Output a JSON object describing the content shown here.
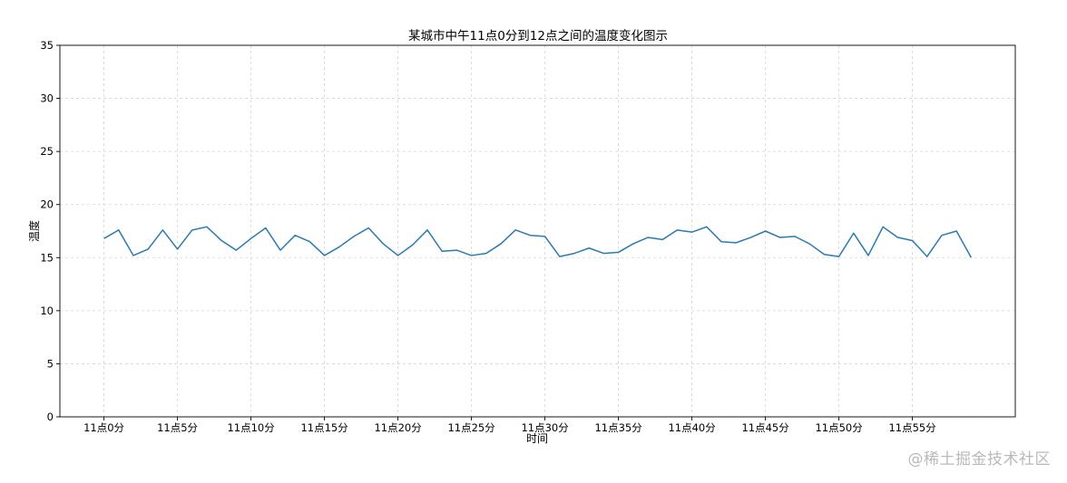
{
  "chart_data": {
    "type": "line",
    "title": "某城市中午11点0分到12点之间的温度变化图示",
    "xlabel": "时间",
    "ylabel": "温度",
    "x": [
      0,
      1,
      2,
      3,
      4,
      5,
      6,
      7,
      8,
      9,
      10,
      11,
      12,
      13,
      14,
      15,
      16,
      17,
      18,
      19,
      20,
      21,
      22,
      23,
      24,
      25,
      26,
      27,
      28,
      29,
      30,
      31,
      32,
      33,
      34,
      35,
      36,
      37,
      38,
      39,
      40,
      41,
      42,
      43,
      44,
      45,
      46,
      47,
      48,
      49,
      50,
      51,
      52,
      53,
      54,
      55,
      56,
      57,
      58,
      59
    ],
    "xtick_values": [
      0,
      5,
      10,
      15,
      20,
      25,
      30,
      35,
      40,
      45,
      50,
      55
    ],
    "xtick_labels": [
      "11点0分",
      "11点5分",
      "11点10分",
      "11点15分",
      "11点20分",
      "11点25分",
      "11点30分",
      "11点35分",
      "11点40分",
      "11点45分",
      "11点50分",
      "11点55分"
    ],
    "ylim": [
      0,
      35
    ],
    "yticks": [
      0,
      5,
      10,
      15,
      20,
      25,
      30,
      35
    ],
    "grid": true,
    "series": [
      {
        "name": "",
        "color": "#2a7ab0",
        "values": [
          16.8,
          17.6,
          15.2,
          15.8,
          17.6,
          15.8,
          17.6,
          17.9,
          16.6,
          15.7,
          16.8,
          17.8,
          15.7,
          17.1,
          16.5,
          15.2,
          16.0,
          17.0,
          17.8,
          16.3,
          15.2,
          16.2,
          17.6,
          15.6,
          15.7,
          15.2,
          15.4,
          16.3,
          17.6,
          17.1,
          17.0,
          15.1,
          15.4,
          15.9,
          15.4,
          15.5,
          16.3,
          16.9,
          16.7,
          17.6,
          17.4,
          17.9,
          16.5,
          16.4,
          16.9,
          17.5,
          16.9,
          17.0,
          16.3,
          15.3,
          15.1,
          17.3,
          15.2,
          17.9,
          16.9,
          16.6,
          15.1,
          17.1,
          17.5,
          15.0
        ]
      }
    ]
  },
  "watermark": "@稀土掘金技术社区"
}
